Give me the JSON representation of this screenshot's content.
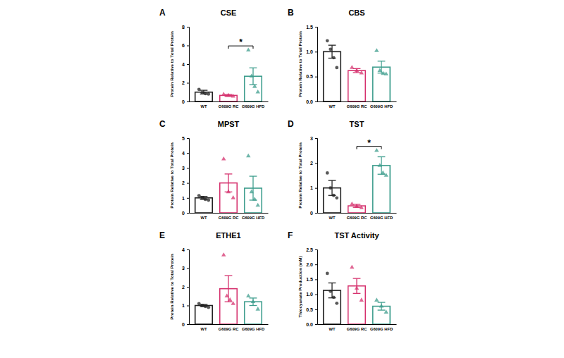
{
  "chart_data": [
    {
      "type": "bar",
      "panel": "A",
      "title": "CSE",
      "y_label": "Protein Relative to Total Protein",
      "categories": [
        "WT",
        "G609G RC",
        "G609G HFD"
      ],
      "values": [
        1.0,
        0.65,
        2.7
      ],
      "errors": [
        0.2,
        0.1,
        0.9
      ],
      "points": [
        [
          1.3,
          0.95,
          0.85,
          0.8
        ],
        [
          0.75,
          0.65,
          0.55
        ],
        [
          5.5,
          2.7,
          1.6,
          1.0
        ]
      ],
      "colors": [
        "#222222",
        "#d6336f",
        "#3f9e8e"
      ],
      "ylim": [
        0,
        8
      ],
      "yticks": [
        0,
        2,
        4,
        6,
        8
      ],
      "significance": [
        {
          "label": "*",
          "between": [
            1,
            2
          ]
        }
      ]
    },
    {
      "type": "bar",
      "panel": "B",
      "title": "CBS",
      "y_label": "Protein Relative to Total Protein",
      "categories": [
        "WT",
        "G609G RC",
        "G609G HFD"
      ],
      "values": [
        1.0,
        0.62,
        0.69
      ],
      "errors": [
        0.13,
        0.04,
        0.12
      ],
      "points": [
        [
          1.22,
          1.05,
          0.88,
          0.68
        ],
        [
          0.68,
          0.62,
          0.57
        ],
        [
          1.02,
          0.62,
          0.56,
          0.55
        ]
      ],
      "colors": [
        "#222222",
        "#d6336f",
        "#3f9e8e"
      ],
      "ylim": [
        0,
        1.5
      ],
      "yticks": [
        {
          "value": 0,
          "label": "0.0"
        },
        {
          "value": 0.5,
          "label": "0.5"
        },
        {
          "value": 1,
          "label": "1.0"
        },
        {
          "value": 1.5,
          "label": "1.5"
        }
      ]
    },
    {
      "type": "bar",
      "panel": "C",
      "title": "MPST",
      "y_label": "Protein Relative to Total Protein",
      "categories": [
        "WT",
        "G609G RC",
        "G609G HFD"
      ],
      "values": [
        1.0,
        2.0,
        1.65
      ],
      "errors": [
        0.1,
        0.6,
        0.8
      ],
      "points": [
        [
          1.15,
          1.0,
          0.9,
          0.85
        ],
        [
          3.6,
          1.4,
          1.0
        ],
        [
          3.8,
          1.4,
          0.9,
          0.5
        ]
      ],
      "colors": [
        "#222222",
        "#d6336f",
        "#3f9e8e"
      ],
      "ylim": [
        0,
        5
      ],
      "yticks": [
        0,
        1,
        2,
        3,
        4,
        5
      ]
    },
    {
      "type": "bar",
      "panel": "D",
      "title": "TST",
      "y_label": "Protein Relative to Total Protein",
      "categories": [
        "WT",
        "G609G RC",
        "G609G HFD"
      ],
      "values": [
        1.0,
        0.28,
        1.9
      ],
      "errors": [
        0.3,
        0.06,
        0.35
      ],
      "points": [
        [
          1.6,
          1.0,
          0.7,
          0.6
        ],
        [
          0.35,
          0.25,
          0.2
        ],
        [
          2.5,
          1.9,
          1.6,
          1.5
        ]
      ],
      "colors": [
        "#222222",
        "#d6336f",
        "#3f9e8e"
      ],
      "ylim": [
        0,
        3
      ],
      "yticks": [
        0,
        1,
        2,
        3
      ],
      "significance": [
        {
          "label": "*",
          "between": [
            1,
            2
          ]
        }
      ]
    },
    {
      "type": "bar",
      "panel": "E",
      "title": "ETHE1",
      "y_label": "Protein Relative to Total Protein",
      "categories": [
        "WT",
        "G609G RC",
        "G609G HFD"
      ],
      "values": [
        1.0,
        1.9,
        1.2
      ],
      "errors": [
        0.06,
        0.7,
        0.2
      ],
      "points": [
        [
          1.1,
          1.0,
          0.95,
          0.9
        ],
        [
          3.7,
          1.5,
          1.3,
          1.1
        ],
        [
          1.5,
          1.2,
          0.8
        ]
      ],
      "colors": [
        "#222222",
        "#d6336f",
        "#3f9e8e"
      ],
      "ylim": [
        0,
        4
      ],
      "yticks": [
        0,
        1,
        2,
        3,
        4
      ]
    },
    {
      "type": "bar",
      "panel": "F",
      "title": "TST Activity",
      "y_label": "Thiocyanate Production (mM)",
      "categories": [
        "WT",
        "G609G RC",
        "G609G HFD"
      ],
      "values": [
        1.13,
        1.28,
        0.6
      ],
      "errors": [
        0.25,
        0.25,
        0.13
      ],
      "points": [
        [
          1.7,
          1.1,
          0.9,
          0.7
        ],
        [
          1.9,
          1.2,
          0.8
        ],
        [
          0.8,
          0.6,
          0.4
        ]
      ],
      "colors": [
        "#222222",
        "#d6336f",
        "#3f9e8e"
      ],
      "ylim": [
        0,
        2.5
      ],
      "yticks": [
        {
          "value": 0,
          "label": "0.0"
        },
        {
          "value": 0.5,
          "label": "0.5"
        },
        {
          "value": 1,
          "label": "1.0"
        },
        {
          "value": 1.5,
          "label": "1.5"
        },
        {
          "value": 2,
          "label": "2.0"
        },
        {
          "value": 2.5,
          "label": "2.5"
        }
      ]
    }
  ]
}
